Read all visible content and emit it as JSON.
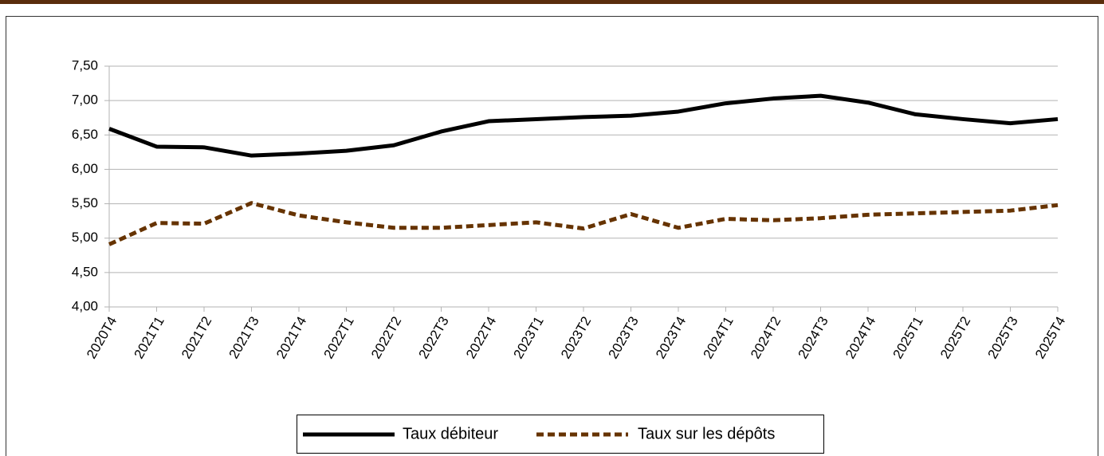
{
  "chart_data": {
    "type": "line",
    "categories": [
      "2020T4",
      "2021T1",
      "2021T2",
      "2021T3",
      "2021T4",
      "2022T1",
      "2022T2",
      "2022T3",
      "2022T4",
      "2023T1",
      "2023T2",
      "2023T3",
      "2023T4",
      "2024T1",
      "2024T2",
      "2024T3",
      "2024T4",
      "2025T1",
      "2025T2",
      "2025T3",
      "2025T4"
    ],
    "series": [
      {
        "name": "Taux débiteur",
        "color": "#000000",
        "dash": false,
        "values": [
          6.59,
          6.33,
          6.32,
          6.2,
          6.23,
          6.27,
          6.35,
          6.55,
          6.7,
          6.73,
          6.76,
          6.78,
          6.84,
          6.96,
          7.03,
          7.07,
          6.97,
          6.8,
          6.73,
          6.67,
          6.73
        ]
      },
      {
        "name": "Taux sur les dépôts",
        "color": "#663300",
        "dash": true,
        "values": [
          4.91,
          5.22,
          5.21,
          5.51,
          5.33,
          5.23,
          5.15,
          5.15,
          5.19,
          5.23,
          5.14,
          5.35,
          5.15,
          5.28,
          5.26,
          5.29,
          5.34,
          5.36,
          5.38,
          5.4,
          5.48
        ]
      }
    ],
    "ylim": [
      4.0,
      7.5
    ],
    "yticks": [
      {
        "value": 4.0,
        "label": "4,00"
      },
      {
        "value": 4.5,
        "label": "4,50"
      },
      {
        "value": 5.0,
        "label": "5,00"
      },
      {
        "value": 5.5,
        "label": "5,50"
      },
      {
        "value": 6.0,
        "label": "6,00"
      },
      {
        "value": 6.5,
        "label": "6,50"
      },
      {
        "value": 7.0,
        "label": "7,00"
      },
      {
        "value": 7.5,
        "label": "7,50"
      }
    ],
    "grid": true,
    "legend": "bottom"
  }
}
